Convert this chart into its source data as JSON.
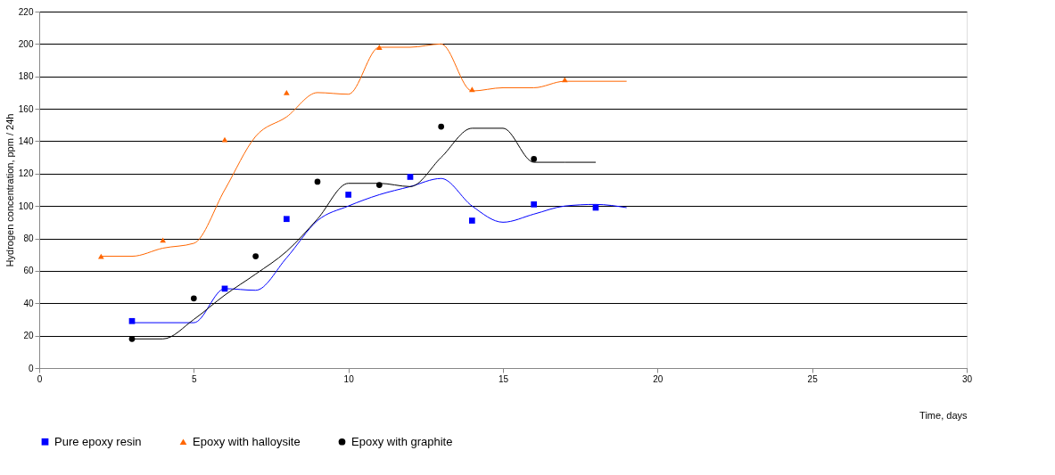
{
  "chart_data": {
    "type": "scatter",
    "xlabel": "Time, days",
    "ylabel": "Hydrogen concentration, ppm / 24h",
    "xlim": [
      0,
      30
    ],
    "ylim": [
      0,
      220
    ],
    "xticks": [
      0,
      5,
      10,
      15,
      20,
      25,
      30
    ],
    "yticks": [
      0,
      20,
      40,
      60,
      80,
      100,
      120,
      140,
      160,
      180,
      200,
      220
    ],
    "grid": "y",
    "legend": "bottom",
    "series": [
      {
        "name": "Pure epoxy resin",
        "marker": "square",
        "color": "#0000ff",
        "x": [
          3,
          6,
          8,
          10,
          12,
          14,
          16,
          18
        ],
        "values": [
          29,
          49,
          92,
          107,
          118,
          91,
          101,
          99
        ]
      },
      {
        "name": "Epoxy with halloysite",
        "marker": "triangle",
        "color": "#ff6600",
        "x": [
          2,
          4,
          6,
          8,
          11,
          14,
          17
        ],
        "values": [
          69,
          79,
          141,
          170,
          198,
          172,
          178
        ]
      },
      {
        "name": "Epoxy with graphite",
        "marker": "circle",
        "color": "#000000",
        "x": [
          3,
          5,
          7,
          9,
          11,
          13,
          16
        ],
        "values": [
          18,
          43,
          69,
          115,
          113,
          149,
          129
        ]
      },
      {
        "type": "line",
        "color": "#0000ff",
        "x": [
          3,
          5,
          6,
          7,
          8,
          9,
          10,
          11,
          12,
          13,
          14,
          15,
          16,
          17,
          18,
          19
        ],
        "values": [
          28,
          28,
          49,
          48,
          68,
          91,
          100,
          107,
          112,
          117,
          100,
          90,
          95,
          100,
          101,
          99
        ]
      },
      {
        "type": "line",
        "color": "#ff6600",
        "x": [
          2,
          3,
          4,
          5,
          6,
          7,
          8,
          9,
          10,
          11,
          12,
          13,
          14,
          15,
          16,
          17,
          19
        ],
        "values": [
          69,
          69,
          74,
          77,
          110,
          143,
          155,
          170,
          169,
          198,
          198,
          200,
          171,
          173,
          173,
          177,
          177
        ]
      },
      {
        "type": "line",
        "color": "#000000",
        "x": [
          3,
          4,
          5,
          6,
          7,
          8,
          9,
          10,
          11,
          12,
          13,
          14,
          15,
          16,
          17,
          18
        ],
        "values": [
          18,
          18,
          30,
          45,
          58,
          72,
          92,
          114,
          114,
          112,
          130,
          148,
          148,
          127,
          127,
          127
        ]
      }
    ]
  }
}
